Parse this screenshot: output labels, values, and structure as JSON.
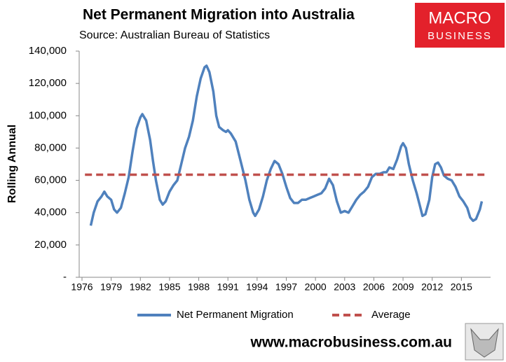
{
  "chart_data": {
    "type": "line",
    "title": "Net Permanent Migration into Australia",
    "subtitle": "Source: Australian Bureau of Statistics",
    "y_label": "Rolling Annual",
    "xlim": [
      1976,
      2018
    ],
    "xticks": [
      1976,
      1979,
      1982,
      1985,
      1988,
      1991,
      1994,
      1997,
      2000,
      2003,
      2006,
      2009,
      2012,
      2015
    ],
    "ylim": [
      0,
      140000
    ],
    "yticks": [
      {
        "value": 0,
        "label": "-"
      },
      {
        "value": 20000,
        "label": "20,000"
      },
      {
        "value": 40000,
        "label": "40,000"
      },
      {
        "value": 60000,
        "label": "60,000"
      },
      {
        "value": 80000,
        "label": "80,000"
      },
      {
        "value": 100000,
        "label": "100,000"
      },
      {
        "value": 120000,
        "label": "120,000"
      },
      {
        "value": 140000,
        "label": "140,000"
      }
    ],
    "grid": false,
    "legend": "bottom",
    "series": [
      {
        "name": "Net Permanent Migration",
        "color": "#4f81bd",
        "dashed": false,
        "x": [
          1976.9,
          1977.2,
          1977.6,
          1978.0,
          1978.3,
          1978.6,
          1979.0,
          1979.3,
          1979.6,
          1980.0,
          1980.4,
          1980.8,
          1981.2,
          1981.6,
          1982.0,
          1982.2,
          1982.6,
          1983.0,
          1983.3,
          1983.6,
          1984.0,
          1984.3,
          1984.6,
          1985.0,
          1985.4,
          1985.8,
          1986.2,
          1986.6,
          1987.0,
          1987.4,
          1987.8,
          1988.2,
          1988.6,
          1988.8,
          1989.1,
          1989.5,
          1989.8,
          1990.1,
          1990.5,
          1990.8,
          1991.0,
          1991.3,
          1991.8,
          1992.3,
          1992.8,
          1993.2,
          1993.6,
          1993.8,
          1994.2,
          1994.6,
          1995.0,
          1995.4,
          1995.8,
          1996.2,
          1996.6,
          1997.0,
          1997.4,
          1997.8,
          1998.2,
          1998.6,
          1999.0,
          1999.4,
          1999.8,
          2000.2,
          2000.6,
          2001.0,
          2001.4,
          2001.8,
          2002.2,
          2002.6,
          2003.0,
          2003.4,
          2003.8,
          2004.2,
          2004.6,
          2005.0,
          2005.4,
          2005.8,
          2006.2,
          2006.6,
          2007.0,
          2007.3,
          2007.6,
          2008.0,
          2008.4,
          2008.8,
          2009.0,
          2009.3,
          2009.6,
          2010.0,
          2010.4,
          2010.7,
          2011.0,
          2011.3,
          2011.7,
          2012.0,
          2012.3,
          2012.6,
          2012.9,
          2013.2,
          2013.6,
          2014.0,
          2014.4,
          2014.8,
          2015.2,
          2015.6,
          2015.9,
          2016.2,
          2016.5,
          2016.9,
          2017.1
        ],
        "values": [
          32000,
          40000,
          47000,
          50000,
          53000,
          50000,
          48000,
          42000,
          40000,
          43000,
          52000,
          62000,
          78000,
          92000,
          99000,
          101000,
          97000,
          85000,
          72000,
          60000,
          48000,
          45000,
          47000,
          53000,
          57000,
          60000,
          70000,
          80000,
          87000,
          97000,
          112000,
          123000,
          130000,
          131000,
          127000,
          115000,
          100000,
          93000,
          91000,
          90000,
          91000,
          89000,
          84000,
          72000,
          60000,
          48000,
          40000,
          38000,
          42000,
          50000,
          60000,
          67000,
          72000,
          70000,
          64000,
          56000,
          49000,
          46000,
          46000,
          48000,
          48000,
          49000,
          50000,
          51000,
          52000,
          55000,
          61000,
          57000,
          47000,
          40000,
          41000,
          40000,
          44000,
          48000,
          51000,
          53000,
          56000,
          62000,
          64000,
          64000,
          65000,
          65000,
          68000,
          67000,
          73000,
          81000,
          83000,
          80000,
          70000,
          60000,
          52000,
          45000,
          38000,
          39000,
          48000,
          62000,
          70000,
          71000,
          68000,
          63000,
          61000,
          60000,
          56000,
          50000,
          47000,
          43000,
          37000,
          35000,
          36000,
          42000,
          47000
        ]
      },
      {
        "name": "Average",
        "color": "#c0504d",
        "dashed": true,
        "x": [
          1976.3,
          2017.5
        ],
        "values": [
          63500,
          63500
        ]
      }
    ]
  },
  "logo": [
    "MACRO",
    "BUSINESS"
  ],
  "footer": "www.macrobusiness.com.au"
}
